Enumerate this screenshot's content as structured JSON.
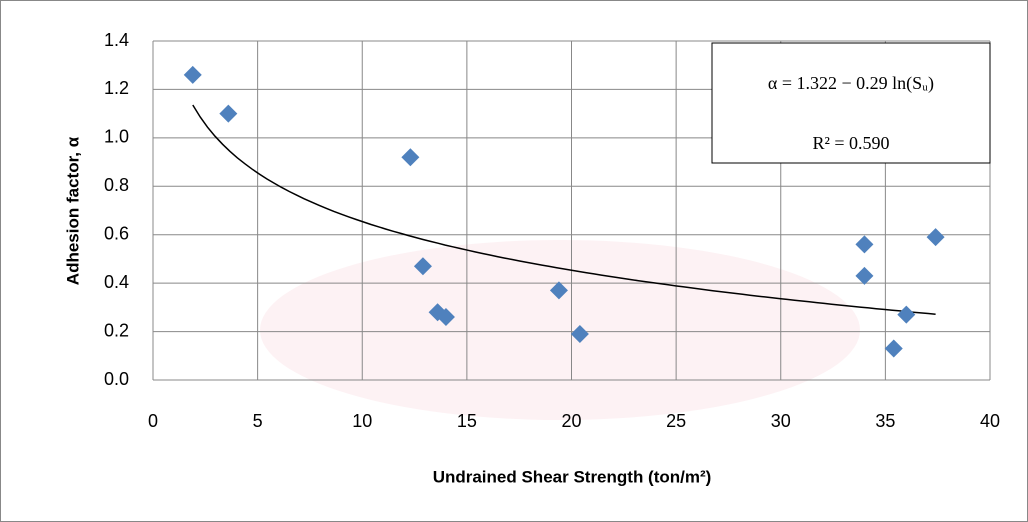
{
  "chart_data": {
    "type": "scatter",
    "x_label": "Undrained Shear Strength (ton/m²)",
    "y_label": "Adhesion factor, α",
    "series": [
      {
        "color": "#4f81bd",
        "x": [
          1.9,
          3.6,
          12.3,
          12.9,
          13.6,
          14.0,
          19.4,
          20.4,
          34.0,
          34.0,
          35.4,
          36.0,
          37.4
        ],
        "values": [
          1.26,
          1.1,
          0.92,
          0.47,
          0.28,
          0.26,
          0.37,
          0.19,
          0.56,
          0.43,
          0.13,
          0.27,
          0.59
        ]
      }
    ],
    "trendline": {
      "intercept": 1.322,
      "slope": -0.29
    },
    "equation": "α = 1.322 − 0.29 ln(Sᵤ)",
    "r_squared": "R² = 0.590",
    "xlim": [
      0,
      40
    ],
    "xticks": [
      0,
      5,
      10,
      15,
      20,
      25,
      30,
      35,
      40
    ],
    "ylim": [
      0,
      1.4
    ],
    "yticks": [
      {
        "value": 0,
        "label": "0.0"
      },
      {
        "value": 0.2,
        "label": "0.2"
      },
      {
        "value": 0.4,
        "label": "0.4"
      },
      {
        "value": 0.6,
        "label": "0.6"
      },
      {
        "value": 0.8,
        "label": "0.8"
      },
      {
        "value": 1,
        "label": "1.0"
      },
      {
        "value": 1.2,
        "label": "1.2"
      },
      {
        "value": 1.4,
        "label": "1.4"
      }
    ],
    "grid": true
  }
}
